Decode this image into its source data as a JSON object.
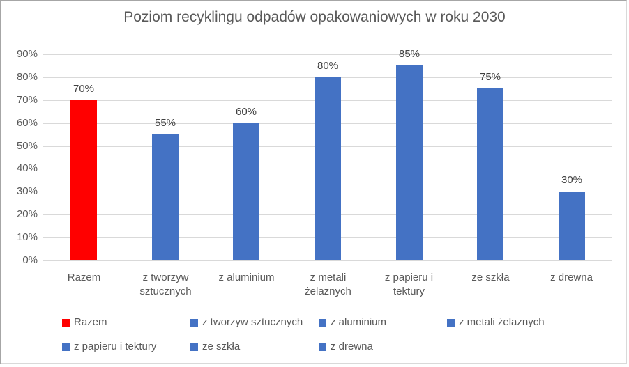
{
  "chart_data": {
    "type": "bar",
    "title": "Poziom recyklingu odpadów opakowaniowych w roku 2030",
    "categories": [
      "Razem",
      "z tworzyw sztucznych",
      "z aluminium",
      "z metali żelaznych",
      "z papieru i tektury",
      "ze szkła",
      "z drewna"
    ],
    "values": [
      70,
      55,
      60,
      80,
      85,
      75,
      30
    ],
    "value_labels": [
      "70%",
      "55%",
      "60%",
      "80%",
      "85%",
      "75%",
      "30%"
    ],
    "bar_colors": [
      "#ff0000",
      "#4472c4",
      "#4472c4",
      "#4472c4",
      "#4472c4",
      "#4472c4",
      "#4472c4"
    ],
    "xlabel": "",
    "ylabel": "",
    "y_axis": {
      "min": 0,
      "max": 90,
      "step": 10,
      "tick_labels": [
        "0%",
        "10%",
        "20%",
        "30%",
        "40%",
        "50%",
        "60%",
        "70%",
        "80%",
        "90%"
      ]
    },
    "ylim": [
      0,
      90
    ],
    "grid": true,
    "legend": {
      "position": "bottom",
      "entries": [
        {
          "label": "Razem",
          "color": "#ff0000"
        },
        {
          "label": "z tworzyw sztucznych",
          "color": "#4472c4"
        },
        {
          "label": "z aluminium",
          "color": "#4472c4"
        },
        {
          "label": "z metali żelaznych",
          "color": "#4472c4"
        },
        {
          "label": "z papieru i tektury",
          "color": "#4472c4"
        },
        {
          "label": "ze szkła",
          "color": "#4472c4"
        },
        {
          "label": "z drewna",
          "color": "#4472c4"
        }
      ]
    }
  },
  "colors": {
    "gridline": "#d9d9d9",
    "axis_text": "#595959",
    "data_label_text": "#404040",
    "title_text": "#595959",
    "background": "#ffffff",
    "accent_red": "#ff0000",
    "accent_blue": "#4472c4"
  }
}
